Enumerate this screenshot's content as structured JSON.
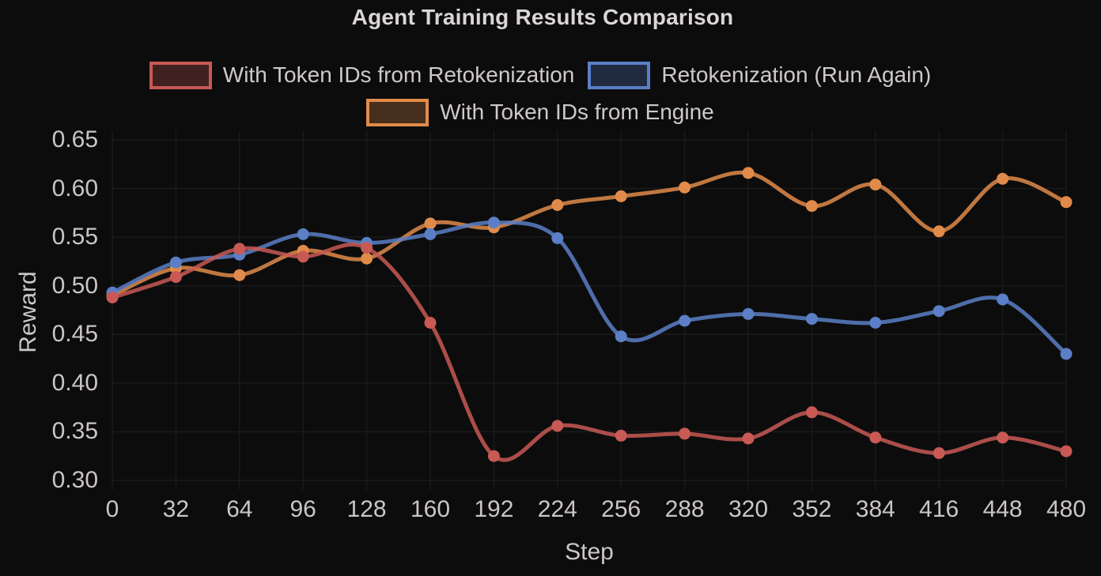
{
  "chart_data": {
    "type": "line",
    "title": "Agent Training Results Comparison",
    "xlabel": "Step",
    "ylabel": "Reward",
    "x": [
      0,
      32,
      64,
      96,
      128,
      160,
      192,
      224,
      256,
      288,
      320,
      352,
      384,
      416,
      448,
      480
    ],
    "y_ticks": [
      0.3,
      0.35,
      0.4,
      0.45,
      0.5,
      0.55,
      0.6,
      0.65
    ],
    "xlim": [
      0,
      480
    ],
    "ylim": [
      0.3,
      0.65
    ],
    "grid": true,
    "legend_position": "upper center (two rows)",
    "background_color": "#0c0c0c",
    "grid_color": "#1a1a1a",
    "text_color": "#cbc5c5",
    "series": [
      {
        "name": "With Token IDs from Retokenization",
        "color": "#c85955",
        "values": [
          0.488,
          0.509,
          0.538,
          0.53,
          0.539,
          0.462,
          0.325,
          0.356,
          0.346,
          0.348,
          0.343,
          0.37,
          0.344,
          0.328,
          0.344,
          0.33
        ]
      },
      {
        "name": "Retokenization (Run Again)",
        "color": "#5a7fc6",
        "values": [
          0.493,
          0.524,
          0.532,
          0.553,
          0.544,
          0.553,
          0.565,
          0.549,
          0.448,
          0.464,
          0.471,
          0.466,
          0.462,
          0.474,
          0.486,
          0.43
        ]
      },
      {
        "name": "With Token IDs from Engine",
        "color": "#e18b4a",
        "values": [
          0.49,
          0.518,
          0.511,
          0.536,
          0.528,
          0.564,
          0.56,
          0.583,
          0.592,
          0.601,
          0.616,
          0.582,
          0.604,
          0.556,
          0.61,
          0.586
        ]
      }
    ],
    "legend_rows": [
      [
        0,
        1
      ],
      [
        2
      ]
    ]
  }
}
